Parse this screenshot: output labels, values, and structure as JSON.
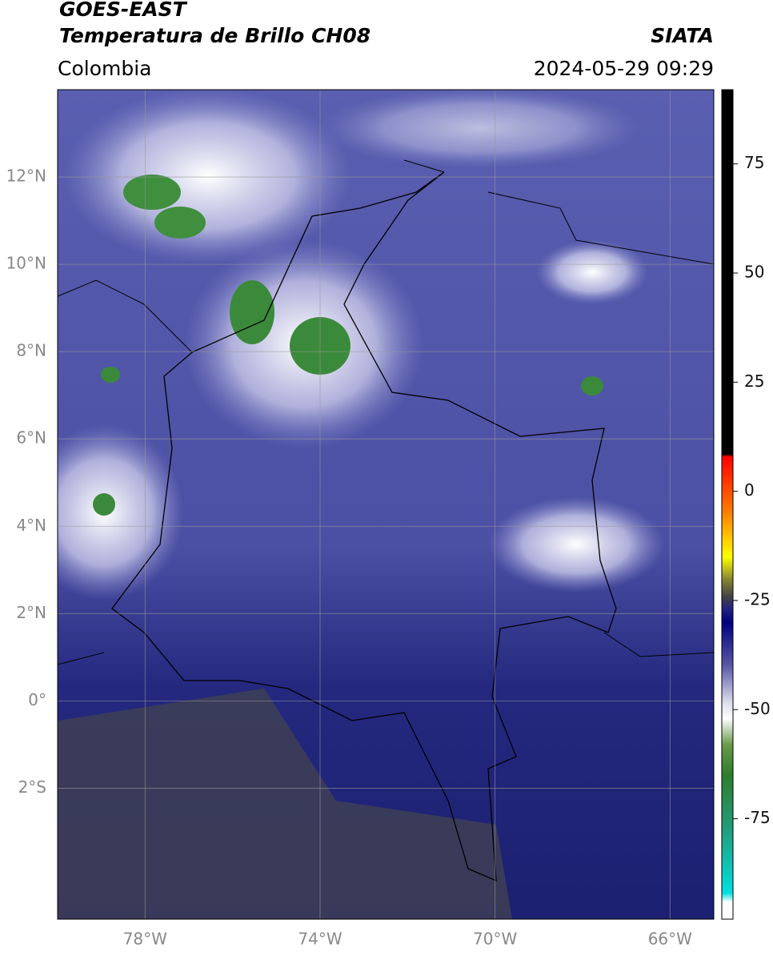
{
  "header": {
    "satellite": "GOES-EAST",
    "product": "Temperatura de Brillo CH08",
    "agency": "SIATA",
    "region": "Colombia",
    "datetime": "2024-05-29 09:29"
  },
  "map": {
    "lonlim": [
      -80,
      -65
    ],
    "latlim": [
      -5,
      14
    ],
    "grid": true,
    "xticks": [
      {
        "value": -78,
        "label": "78°W"
      },
      {
        "value": -74,
        "label": "74°W"
      },
      {
        "value": -70,
        "label": "70°W"
      },
      {
        "value": -66,
        "label": "66°W"
      }
    ],
    "yticks": [
      {
        "value": 12,
        "label": "12°N"
      },
      {
        "value": 10,
        "label": "10°N"
      },
      {
        "value": 8,
        "label": "8°N"
      },
      {
        "value": 6,
        "label": "6°N"
      },
      {
        "value": 4,
        "label": "4°N"
      },
      {
        "value": 2,
        "label": "2°N"
      },
      {
        "value": 0,
        "label": "0°"
      },
      {
        "value": -2,
        "label": "2°S"
      }
    ]
  },
  "colorbar": {
    "lim": [
      -98,
      92
    ],
    "ticks": [
      75,
      50,
      25,
      0,
      -25,
      -50,
      -75
    ],
    "stops": [
      {
        "value": 92,
        "color": "#000000"
      },
      {
        "value": 8.5,
        "color": "#000000"
      },
      {
        "value": 8,
        "color": "#ff0000"
      },
      {
        "value": -5,
        "color": "#ff8000"
      },
      {
        "value": -15,
        "color": "#ffff00"
      },
      {
        "value": -20,
        "color": "#888830"
      },
      {
        "value": -24,
        "color": "#444444"
      },
      {
        "value": -27,
        "color": "#202080"
      },
      {
        "value": -30,
        "color": "#000080"
      },
      {
        "value": -40,
        "color": "#5a5aa8"
      },
      {
        "value": -48,
        "color": "#d8d8ec"
      },
      {
        "value": -52,
        "color": "#ffffff"
      },
      {
        "value": -58,
        "color": "#6a9a4a"
      },
      {
        "value": -65,
        "color": "#2e7d2e"
      },
      {
        "value": -78,
        "color": "#20a080"
      },
      {
        "value": -92,
        "color": "#00e0e0"
      },
      {
        "value": -94,
        "color": "#ffffff"
      },
      {
        "value": -98,
        "color": "#ffffff"
      }
    ]
  }
}
